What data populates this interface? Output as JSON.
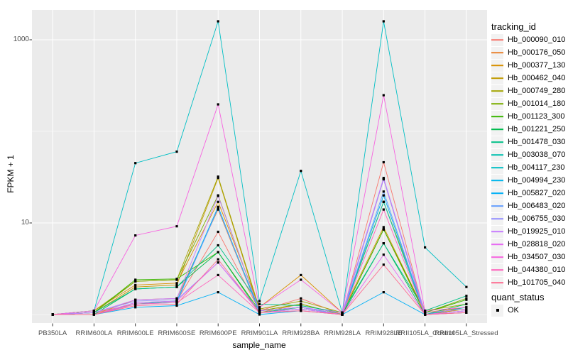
{
  "chart_data": {
    "type": "line",
    "xlabel": "sample_name",
    "ylabel": "FPKM + 1",
    "y_scale": "log10",
    "y_ticks": [
      "10",
      "1000"
    ],
    "y_tick_values": [
      10,
      1000
    ],
    "y_gridlines_major": [
      10,
      1000
    ],
    "y_gridlines_minor": [
      1,
      100
    ],
    "ylim": [
      0.93,
      2200
    ],
    "grid": "on",
    "panel_bg": "#EBEBEB",
    "grid_color": "#FFFFFF",
    "point_marker": "square",
    "point_color": "#000000",
    "categories": [
      "PB350LA",
      "RRIM600LA",
      "RRIM600LE",
      "RRIM600SE",
      "RRIM600PE",
      "RRIM901LA",
      "RRIM928BA",
      "RRIM928LA",
      "RRIM928LE",
      "RRII105LA_Control",
      "RRII105LA_Stressed"
    ],
    "series": [
      {
        "name": "Hb_000090_010",
        "color": "#F8766D",
        "values": [
          1.0,
          1.05,
          1.3,
          1.4,
          8.0,
          1.1,
          1.5,
          1.0,
          46,
          1.0,
          1.05
        ]
      },
      {
        "name": "Hb_000176_050",
        "color": "#EA8331",
        "values": [
          1.0,
          1.0,
          1.45,
          1.5,
          14,
          1.05,
          1.3,
          1.0,
          30,
          1.0,
          1.1
        ]
      },
      {
        "name": "Hb_000377_130",
        "color": "#D89000",
        "values": [
          1.0,
          1.1,
          2.1,
          2.2,
          17,
          1.2,
          2.7,
          1.05,
          9.0,
          1.05,
          1.2
        ]
      },
      {
        "name": "Hb_000462_040",
        "color": "#C09B00",
        "values": [
          1.0,
          1.05,
          2.0,
          2.1,
          31,
          1.1,
          1.3,
          1.0,
          8.5,
          1.0,
          1.15
        ]
      },
      {
        "name": "Hb_000749_280",
        "color": "#A3A500",
        "values": [
          1.0,
          1.1,
          2.3,
          2.4,
          32,
          1.15,
          1.4,
          1.05,
          17,
          1.1,
          1.3
        ]
      },
      {
        "name": "Hb_001014_180",
        "color": "#7CAE00",
        "values": [
          1.0,
          1.05,
          2.3,
          2.4,
          20,
          1.1,
          1.3,
          1.0,
          8.5,
          1.05,
          1.5
        ]
      },
      {
        "name": "Hb_001123_300",
        "color": "#39B600",
        "values": [
          1.0,
          1.05,
          2.4,
          2.45,
          4.8,
          1.1,
          1.2,
          1.0,
          8.5,
          1.05,
          1.45
        ]
      },
      {
        "name": "Hb_001221_250",
        "color": "#00BB4E",
        "values": [
          1.0,
          1.0,
          1.9,
          2.0,
          4.8,
          1.05,
          1.2,
          1.0,
          6.0,
          1.0,
          1.3
        ]
      },
      {
        "name": "Hb_001478_030",
        "color": "#00C087",
        "values": [
          1.0,
          1.05,
          1.9,
          2.0,
          5.7,
          1.3,
          1.25,
          1.05,
          6.0,
          1.1,
          1.6
        ]
      },
      {
        "name": "Hb_003038_070",
        "color": "#00C0AF",
        "values": [
          1.0,
          1.0,
          1.3,
          1.4,
          14.5,
          1.1,
          1.2,
          1.0,
          17,
          1.0,
          1.2
        ]
      },
      {
        "name": "Hb_004117_230",
        "color": "#00BFC4",
        "values": [
          1.0,
          1.1,
          45,
          60,
          1590,
          1.4,
          37,
          1.05,
          1590,
          5.4,
          2.0
        ]
      },
      {
        "name": "Hb_004994_230",
        "color": "#00B5EC",
        "values": [
          1.0,
          1.0,
          1.35,
          1.4,
          15,
          1.05,
          1.15,
          1.0,
          20,
          1.0,
          1.1
        ]
      },
      {
        "name": "Hb_005827_020",
        "color": "#00B0F6",
        "values": [
          1.0,
          1.0,
          1.2,
          1.25,
          1.75,
          1.0,
          1.1,
          1.0,
          1.75,
          1.0,
          1.05
        ]
      },
      {
        "name": "Hb_006483_020",
        "color": "#619CFF",
        "values": [
          1.0,
          1.0,
          1.3,
          1.35,
          14.5,
          1.05,
          1.15,
          1.0,
          22,
          1.0,
          1.1
        ]
      },
      {
        "name": "Hb_006755_030",
        "color": "#9590FF",
        "values": [
          1.0,
          1.05,
          1.4,
          1.45,
          3.7,
          1.1,
          1.2,
          1.0,
          30,
          1.0,
          1.1
        ]
      },
      {
        "name": "Hb_019925_010",
        "color": "#C77CFF",
        "values": [
          1.0,
          1.05,
          1.45,
          1.5,
          19.7,
          1.1,
          1.2,
          1.05,
          31,
          1.05,
          1.15
        ]
      },
      {
        "name": "Hb_028818_020",
        "color": "#E76BF3",
        "values": [
          1.0,
          1.0,
          1.35,
          1.4,
          3.7,
          1.05,
          1.15,
          1.0,
          4.5,
          1.0,
          1.1
        ]
      },
      {
        "name": "Hb_034507_030",
        "color": "#F763E0",
        "values": [
          1.0,
          1.1,
          7.3,
          9.2,
          197,
          1.2,
          2.4,
          1.05,
          248,
          1.1,
          1.2
        ]
      },
      {
        "name": "Hb_044380_010",
        "color": "#FF62BC",
        "values": [
          1.0,
          1.0,
          1.3,
          1.35,
          2.7,
          1.05,
          1.1,
          1.0,
          14,
          1.0,
          1.05
        ]
      },
      {
        "name": "Hb_101705_040",
        "color": "#FF6C91",
        "values": [
          1.0,
          1.0,
          1.25,
          1.3,
          4.0,
          1.05,
          1.1,
          1.0,
          3.5,
          1.0,
          1.05
        ]
      }
    ],
    "legend": {
      "position": "right",
      "series_title": "tracking_id",
      "shape_title": "quant_status",
      "shape_items": [
        {
          "label": "OK",
          "marker": "black-square"
        }
      ]
    }
  },
  "text_colors": {
    "tick": "#4D4D4D",
    "title": "#000000"
  }
}
